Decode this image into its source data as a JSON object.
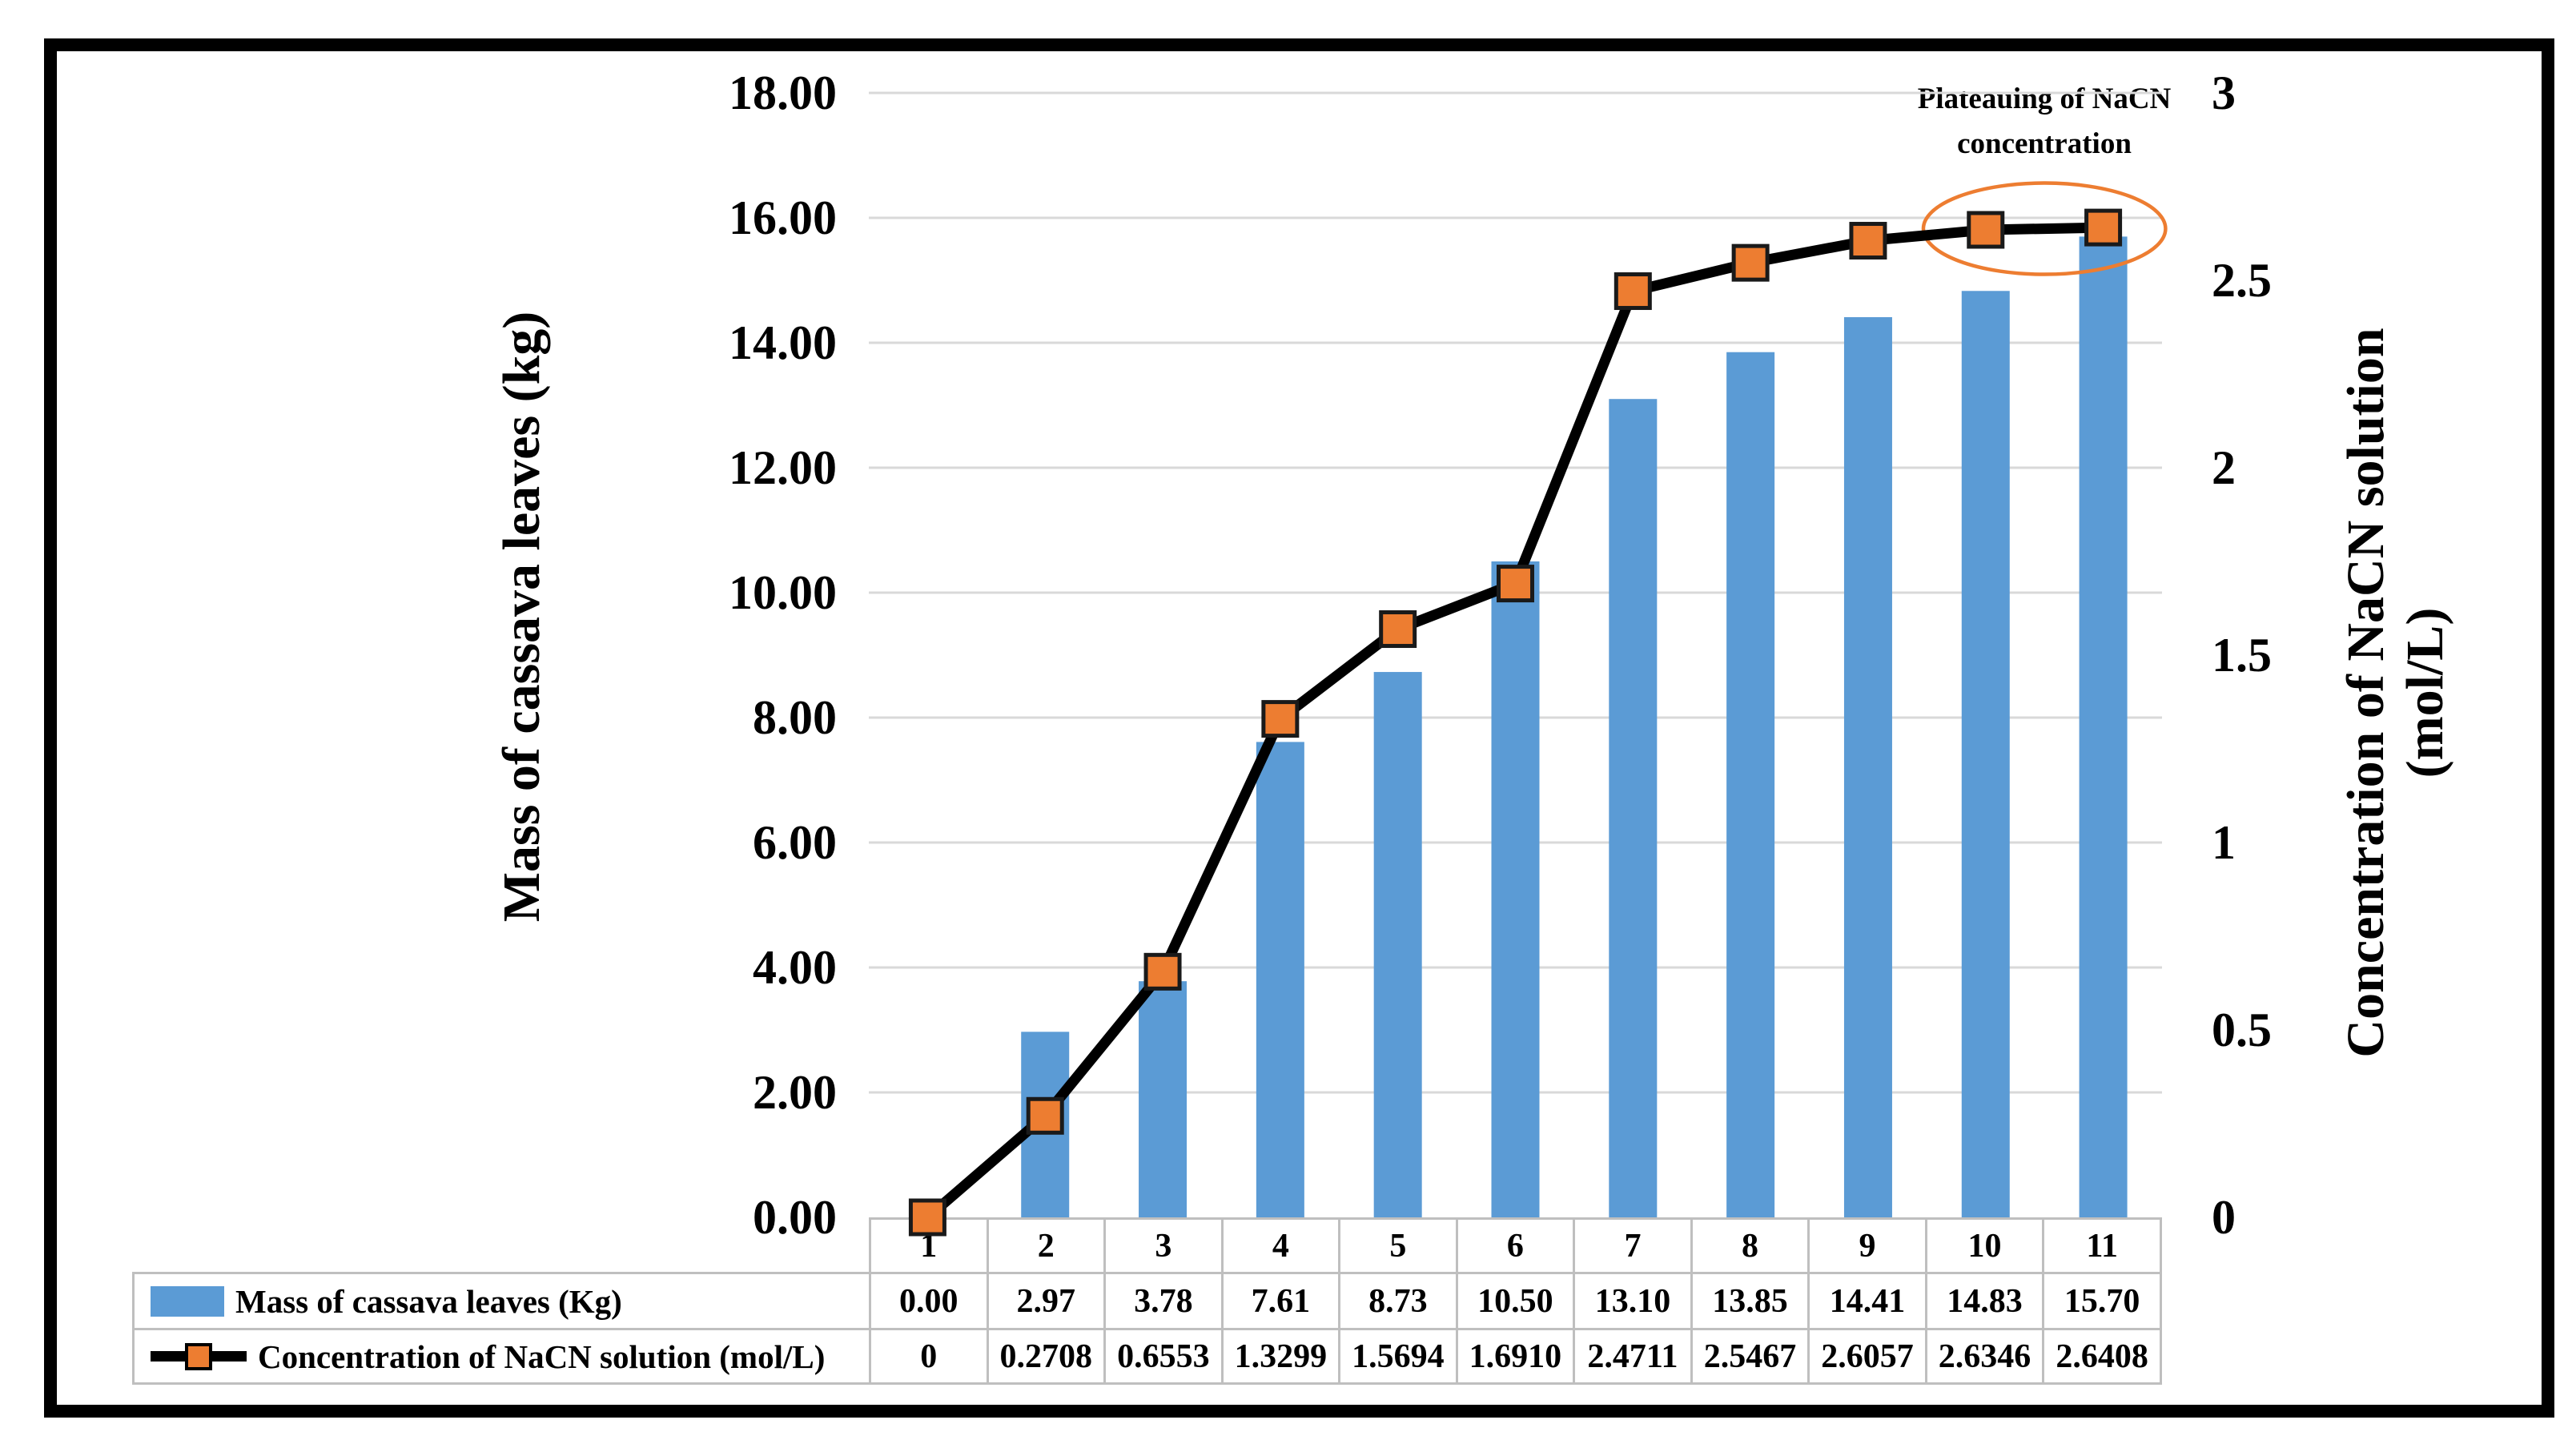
{
  "chart_data": {
    "type": "combo-bar-line",
    "categories": [
      "1",
      "2",
      "3",
      "4",
      "5",
      "6",
      "7",
      "8",
      "9",
      "10",
      "11"
    ],
    "series": [
      {
        "name": "Mass of cassava leaves (Kg)",
        "type": "bar",
        "axis": "left",
        "color": "#5B9BD5",
        "values": [
          0.0,
          2.97,
          3.78,
          7.61,
          8.73,
          10.5,
          13.1,
          13.85,
          14.41,
          14.83,
          15.7
        ],
        "display": [
          "0.00",
          "2.97",
          "3.78",
          "7.61",
          "8.73",
          "10.50",
          "13.10",
          "13.85",
          "14.41",
          "14.83",
          "15.70"
        ]
      },
      {
        "name": "Concentration of NaCN solution (mol/L)",
        "type": "line",
        "axis": "right",
        "line_color": "#000000",
        "marker_color": "#ED7D31",
        "marker_border": "#1a1a1a",
        "marker_shape": "square",
        "values": [
          0,
          0.2708,
          0.6553,
          1.3299,
          1.5694,
          1.691,
          2.4711,
          2.5467,
          2.6057,
          2.6346,
          2.6408
        ],
        "display": [
          "0",
          "0.2708",
          "0.6553",
          "1.3299",
          "1.5694",
          "1.6910",
          "2.4711",
          "2.5467",
          "2.6057",
          "2.6346",
          "2.6408"
        ]
      }
    ],
    "left_axis": {
      "title": "Mass of cassava leaves (kg)",
      "min": 0,
      "max": 18,
      "step": 2,
      "ticks": [
        "18.00",
        "16.00",
        "14.00",
        "12.00",
        "10.00",
        "8.00",
        "6.00",
        "4.00",
        "2.00",
        "0.00"
      ],
      "tick_values": [
        18,
        16,
        14,
        12,
        10,
        8,
        6,
        4,
        2,
        0
      ]
    },
    "right_axis": {
      "title_line1": "Concentration of NaCN solution",
      "title_line2": "(mol/L)",
      "min": 0,
      "max": 3,
      "step": 0.5,
      "ticks": [
        "3",
        "2.5",
        "2",
        "1.5",
        "1",
        "0.5",
        "0"
      ],
      "tick_values": [
        3,
        2.5,
        2,
        1.5,
        1,
        0.5,
        0
      ]
    },
    "annotation": {
      "line1": "Plateauing of NaCN",
      "line2": "concentration",
      "circled_categories": [
        "10",
        "11"
      ],
      "ellipse_color": "#ED7D31"
    },
    "grid": true,
    "gridline_color": "#D9D9D9",
    "table_border_color": "#BFBFBF",
    "legend_position": "table-left"
  }
}
